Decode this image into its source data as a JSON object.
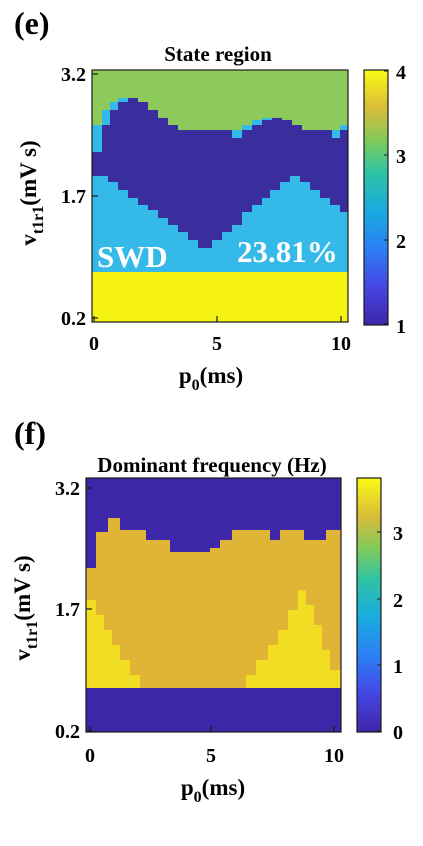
{
  "chart_data": [
    {
      "type": "heatmap",
      "panel_label": "(e)",
      "title": "State region",
      "xlabel": {
        "base": "p",
        "sub": "0",
        "rest": "(ms)"
      },
      "ylabel": {
        "base": "v",
        "sub": "t1r1",
        "rest": "(mV s)"
      },
      "xlim": [
        0,
        10
      ],
      "ylim": [
        0.2,
        3.2
      ],
      "xticks": [
        "0",
        "5",
        "10"
      ],
      "yticks": [
        "0.2",
        "1.7",
        "3.2"
      ],
      "colorbar": {
        "ticks": [
          "1",
          "2",
          "3",
          "4"
        ],
        "range": [
          1,
          4
        ]
      },
      "annotations": [
        "SWD",
        "23.81%"
      ],
      "grid": false,
      "regions": [
        {
          "state": 4,
          "description": "bottom band",
          "y_range": [
            0.2,
            0.95
          ]
        },
        {
          "state": 2,
          "description": "SWD band",
          "y_range": [
            0.95,
            2.05
          ]
        },
        {
          "state": 1,
          "description": "V-shaped middle region",
          "y_range": [
            1.1,
            2.9
          ]
        },
        {
          "state": 3,
          "description": "top region",
          "y_range": [
            2.0,
            3.2
          ]
        }
      ]
    },
    {
      "type": "heatmap",
      "panel_label": "(f)",
      "title": "Dominant frequency (Hz)",
      "xlabel": {
        "base": "p",
        "sub": "0",
        "rest": "(ms)"
      },
      "ylabel": {
        "base": "v",
        "sub": "t1r1",
        "rest": "(mV s)"
      },
      "xlim": [
        0,
        10
      ],
      "ylim": [
        0.2,
        3.2
      ],
      "xticks": [
        "0",
        "5",
        "10"
      ],
      "yticks": [
        "0.2",
        "1.7",
        "3.2"
      ],
      "colorbar": {
        "ticks": [
          "0",
          "1",
          "2",
          "3"
        ],
        "range": [
          0,
          3.8
        ]
      },
      "grid": false,
      "regions": [
        {
          "value": 0,
          "description": "bottom band",
          "y_range": [
            0.2,
            0.95
          ]
        },
        {
          "value": 3.3,
          "description": "oscillation region",
          "y_range": [
            0.95,
            2.7
          ]
        },
        {
          "value": 3.8,
          "description": "high-frequency lobes",
          "y_range": [
            0.95,
            2.0
          ]
        },
        {
          "value": 0,
          "description": "top region",
          "y_range": [
            2.4,
            3.2
          ]
        }
      ]
    }
  ]
}
